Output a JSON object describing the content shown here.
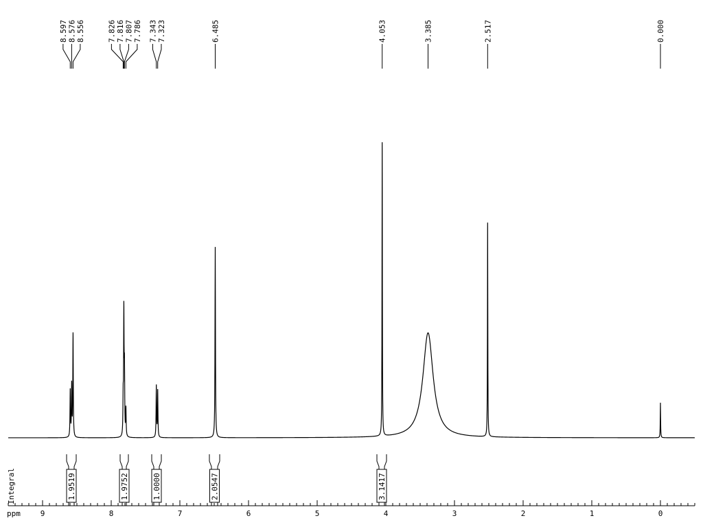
{
  "chart_data": {
    "type": "spectrum",
    "x_label": "ppm",
    "integral_label": "Integral",
    "xlim": [
      9.5,
      -0.5
    ],
    "xticks": [
      9,
      8,
      7,
      6,
      5,
      4,
      3,
      2,
      1,
      0
    ],
    "xminor_step": 0.1,
    "ylim": [
      0,
      440
    ],
    "color": "#000000",
    "peaks": {
      "x": [
        8.597,
        8.576,
        8.556,
        7.826,
        7.816,
        7.807,
        7.786,
        7.343,
        7.323,
        6.485,
        4.053,
        3.385,
        2.517,
        0
      ],
      "x_labels": [
        "8.597",
        "8.576",
        "8.556",
        "7.826",
        "7.816",
        "7.807",
        "7.786",
        "7.343",
        "7.323",
        "6.485",
        "4.053",
        "3.385",
        "2.517",
        "0.000"
      ],
      "heights": [
        68,
        75,
        150,
        50,
        177,
        90,
        40,
        75,
        68,
        278,
        428,
        153,
        312,
        51
      ],
      "linewidths": [
        0.004,
        0.004,
        0.004,
        0.004,
        0.004,
        0.004,
        0.004,
        0.004,
        0.004,
        0.004,
        0.003,
        0.09,
        0.003,
        0.003
      ]
    },
    "integrals": {
      "regions": [
        [
          8.65,
          8.51
        ],
        [
          7.87,
          7.75
        ],
        [
          7.41,
          7.27
        ],
        [
          6.57,
          6.42
        ],
        [
          4.13,
          3.99
        ]
      ],
      "values": [
        1.9519,
        1.9752,
        1,
        2.0547,
        3.1417
      ],
      "value_labels": [
        "1.9519",
        "1.9752",
        "1.0000",
        "2.0547",
        "3.1417"
      ]
    }
  }
}
